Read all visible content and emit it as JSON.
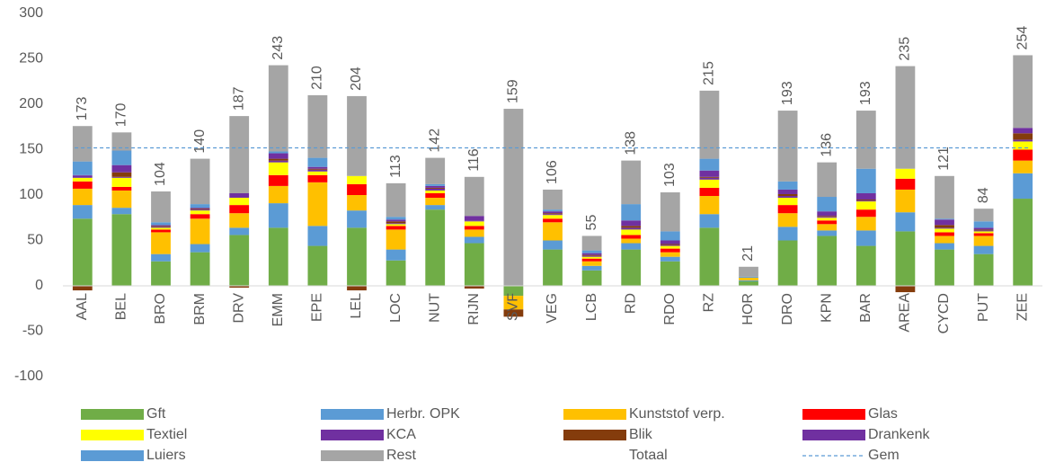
{
  "chart_data": {
    "type": "stacked_bar",
    "categories": [
      "AAL",
      "BEL",
      "BRO",
      "BRM",
      "DRV",
      "EMM",
      "EPE",
      "LEL",
      "LOC",
      "NUT",
      "RIJN",
      "SVF",
      "VEG",
      "LCB",
      "RD",
      "RDO",
      "RZ",
      "HOR",
      "DRO",
      "KPN",
      "BAR",
      "AREA",
      "CYCD",
      "PUT",
      "ZEE"
    ],
    "series": [
      {
        "name": "Gft",
        "color": "#70ad47",
        "values": [
          74,
          79,
          27,
          37,
          56,
          64,
          44,
          64,
          28,
          84,
          47,
          -11,
          40,
          17,
          40,
          27,
          64,
          5,
          50,
          55,
          44,
          60,
          40,
          35,
          96
        ]
      },
      {
        "name": "Herbr. OPK",
        "color": "#5b9bd5",
        "values": [
          15,
          7,
          8,
          9,
          8,
          27,
          22,
          19,
          12,
          5,
          7,
          0,
          10,
          5,
          7,
          5,
          15,
          1,
          15,
          6,
          17,
          21,
          7,
          9,
          28
        ]
      },
      {
        "name": "Kunststof verp.",
        "color": "#ffc000",
        "values": [
          18,
          19,
          24,
          28,
          16,
          19,
          48,
          17,
          22,
          8,
          8,
          -15,
          20,
          5,
          5,
          5,
          20,
          3,
          15,
          7,
          15,
          25,
          8,
          11,
          14
        ]
      },
      {
        "name": "Glas",
        "color": "#ff0000",
        "values": [
          8,
          4,
          3,
          5,
          9,
          12,
          8,
          12,
          4,
          5,
          4,
          0,
          4,
          3,
          4,
          4,
          9,
          0,
          9,
          4,
          8,
          12,
          4,
          3,
          12
        ]
      },
      {
        "name": "Textiel",
        "color": "#ffff00",
        "values": [
          4,
          10,
          2,
          4,
          8,
          14,
          4,
          9,
          2,
          3,
          5,
          0,
          4,
          2,
          6,
          3,
          9,
          0,
          8,
          3,
          9,
          11,
          4,
          2,
          9
        ]
      },
      {
        "name": "KCA",
        "color": "#7030a0",
        "values": [
          2,
          1,
          1,
          1,
          1,
          2,
          2,
          0,
          1,
          2,
          1,
          0,
          1,
          1,
          2,
          1,
          2,
          0,
          2,
          1,
          1,
          0,
          1,
          1,
          2
        ]
      },
      {
        "name": "Blik",
        "color": "#843c0c",
        "values": [
          -5,
          5,
          1,
          1,
          -2,
          2,
          1,
          -5,
          2,
          1,
          -3,
          -8,
          1,
          1,
          2,
          1,
          1,
          0,
          2,
          1,
          1,
          -7,
          3,
          1,
          7
        ]
      },
      {
        "name": "Drankenk",
        "color": "#7030a0",
        "values": [
          1,
          8,
          1,
          1,
          4,
          6,
          2,
          0,
          2,
          2,
          5,
          0,
          2,
          2,
          6,
          4,
          7,
          0,
          5,
          5,
          7,
          0,
          6,
          2,
          6
        ]
      },
      {
        "name": "Luiers",
        "color": "#5b9bd5",
        "values": [
          15,
          16,
          3,
          4,
          0,
          2,
          10,
          0,
          3,
          2,
          0,
          0,
          2,
          3,
          18,
          10,
          13,
          1,
          9,
          16,
          27,
          0,
          1,
          7,
          0
        ]
      },
      {
        "name": "Rest",
        "color": "#a5a5a5",
        "values": [
          39,
          20,
          34,
          50,
          85,
          95,
          69,
          88,
          37,
          29,
          43,
          195,
          22,
          16,
          48,
          43,
          75,
          11,
          78,
          38,
          64,
          113,
          47,
          14,
          80
        ]
      }
    ],
    "totals": {
      "name": "Totaal",
      "values": [
        173,
        170,
        104,
        140,
        187,
        243,
        210,
        204,
        113,
        142,
        116,
        159,
        106,
        55,
        138,
        103,
        215,
        21,
        193,
        136,
        193,
        235,
        121,
        84,
        254
      ]
    },
    "reference_line": {
      "name": "Gem",
      "value": 152,
      "color": "#5b9bd5"
    },
    "ylim": [
      -100,
      300
    ],
    "yticks": [
      -100,
      -50,
      0,
      50,
      100,
      150,
      200,
      250,
      300
    ]
  }
}
